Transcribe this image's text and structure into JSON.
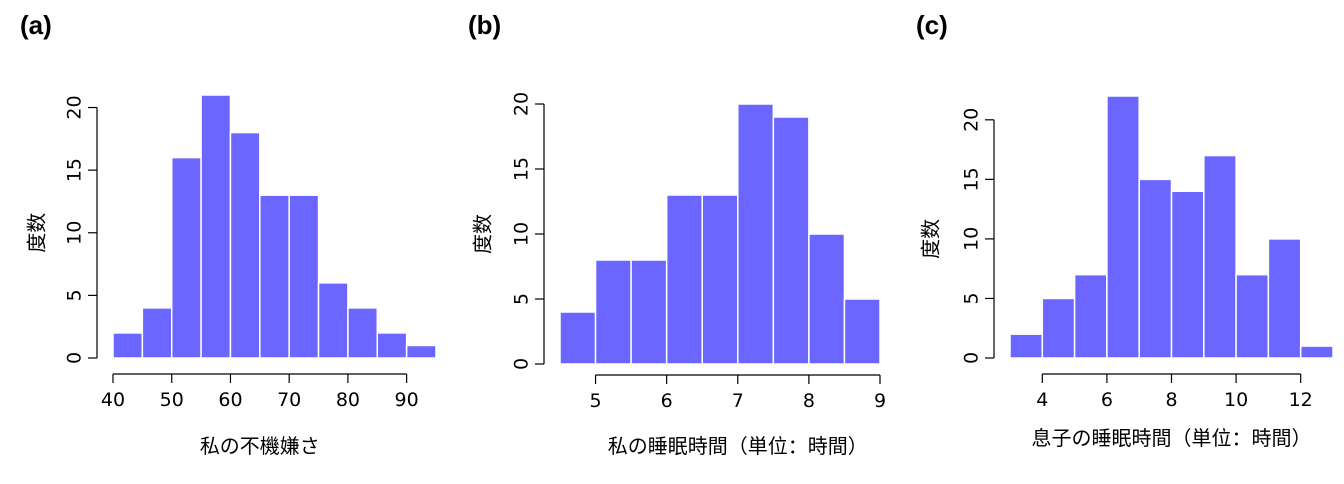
{
  "colors": {
    "bar_fill": "#6b66ff",
    "bar_stroke": "#ffffff",
    "axis": "#000000"
  },
  "chart_data": [
    {
      "panel_label": "(a)",
      "type": "bar",
      "subtype": "histogram",
      "xlabel": "私の不機嫌さ",
      "ylabel": "度数",
      "bins": [
        [
          40,
          45
        ],
        [
          45,
          50
        ],
        [
          50,
          55
        ],
        [
          55,
          60
        ],
        [
          60,
          65
        ],
        [
          65,
          70
        ],
        [
          70,
          75
        ],
        [
          75,
          80
        ],
        [
          80,
          85
        ],
        [
          85,
          90
        ],
        [
          90,
          95
        ]
      ],
      "values": [
        2,
        4,
        16,
        21,
        18,
        13,
        13,
        6,
        4,
        2,
        1
      ],
      "xticks": [
        40,
        50,
        60,
        70,
        80,
        90
      ],
      "yticks": [
        0,
        5,
        10,
        15,
        20
      ],
      "xlim": [
        40,
        95
      ],
      "ylim": [
        0,
        21
      ],
      "xaxis_range": [
        40,
        90
      ],
      "yaxis_range": [
        0,
        20
      ],
      "grid": false
    },
    {
      "panel_label": "(b)",
      "type": "bar",
      "subtype": "histogram",
      "xlabel": "私の睡眠時間（単位：時間）",
      "ylabel": "度数",
      "bins": [
        [
          4.5,
          5
        ],
        [
          5,
          5.5
        ],
        [
          5.5,
          6
        ],
        [
          6,
          6.5
        ],
        [
          6.5,
          7
        ],
        [
          7,
          7.5
        ],
        [
          7.5,
          8
        ],
        [
          8,
          8.5
        ],
        [
          8.5,
          9
        ]
      ],
      "values": [
        4,
        8,
        8,
        13,
        13,
        20,
        19,
        10,
        5
      ],
      "xticks": [
        5,
        6,
        7,
        8,
        9
      ],
      "yticks": [
        0,
        5,
        10,
        15,
        20
      ],
      "xlim": [
        4.5,
        9
      ],
      "ylim": [
        0,
        20
      ],
      "xaxis_range": [
        5,
        9
      ],
      "yaxis_range": [
        0,
        20
      ],
      "grid": false
    },
    {
      "panel_label": "(c)",
      "type": "bar",
      "subtype": "histogram",
      "xlabel": "息子の睡眠時間（単位：時間）",
      "ylabel": "度数",
      "bins": [
        [
          3,
          4
        ],
        [
          4,
          5
        ],
        [
          5,
          6
        ],
        [
          6,
          7
        ],
        [
          7,
          8
        ],
        [
          8,
          9
        ],
        [
          9,
          10
        ],
        [
          10,
          11
        ],
        [
          11,
          12
        ],
        [
          12,
          13
        ]
      ],
      "values": [
        2,
        5,
        7,
        22,
        15,
        14,
        17,
        7,
        10,
        1
      ],
      "xticks": [
        4,
        6,
        8,
        10,
        12
      ],
      "yticks": [
        0,
        5,
        10,
        15,
        20
      ],
      "xlim": [
        3,
        13
      ],
      "ylim": [
        0,
        22
      ],
      "xaxis_range": [
        4,
        12
      ],
      "yaxis_range": [
        0,
        20
      ],
      "grid": false
    }
  ]
}
